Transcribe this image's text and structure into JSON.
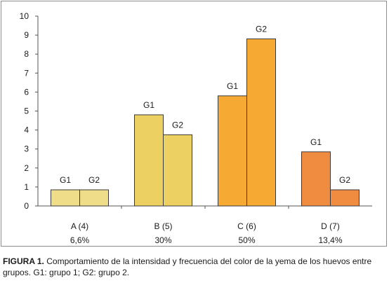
{
  "chart_data": {
    "type": "bar",
    "categories": [
      "A (4)",
      "B (5)",
      "C (6)",
      "D (7)"
    ],
    "category_percent": [
      "6,6%",
      "30%",
      "50%",
      "13,4%"
    ],
    "series": [
      {
        "values": [
          0.85,
          4.8,
          5.8,
          2.85
        ],
        "labels": [
          "G1",
          "G1",
          "G1",
          "G1"
        ]
      },
      {
        "values": [
          0.85,
          3.75,
          8.8,
          0.85
        ],
        "labels": [
          "G2",
          "G2",
          "G2",
          "G2"
        ]
      }
    ],
    "category_colors": [
      "#f0dd8a",
      "#ecd062",
      "#f7aa33",
      "#f08c40"
    ],
    "ylim": [
      0,
      10
    ],
    "yticks": [
      "0",
      "1",
      "2",
      "3",
      "4",
      "5",
      "6",
      "7",
      "8",
      "9",
      "10"
    ],
    "grid": false,
    "legend": "none"
  },
  "caption": {
    "label": "FIGURA 1.",
    "text": " Comportamiento de la intensidad y frecuencia del color de la yema de los huevos entre grupos. G1: grupo 1; G2: grupo 2."
  }
}
